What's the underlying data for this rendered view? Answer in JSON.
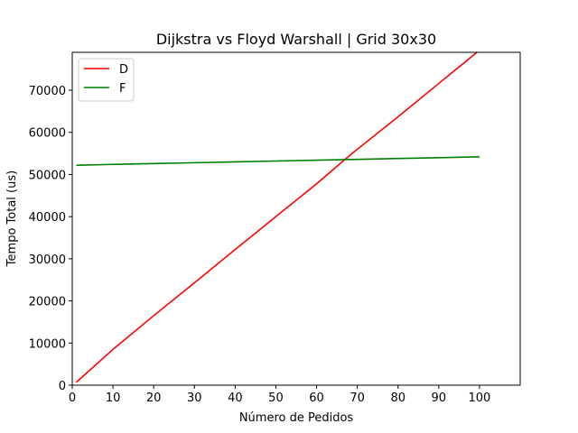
{
  "chart_data": {
    "type": "line",
    "title": "Dijkstra vs Floyd Warshall | Grid 30x30",
    "xlabel": "Número de Pedidos",
    "ylabel": "Tempo Total (us)",
    "xlim": [
      0,
      110
    ],
    "ylim": [
      0,
      79000
    ],
    "xticks": [
      0,
      10,
      20,
      30,
      40,
      50,
      60,
      70,
      80,
      90,
      100
    ],
    "yticks": [
      0,
      10000,
      20000,
      30000,
      40000,
      50000,
      60000,
      70000
    ],
    "grid": false,
    "legend_position": "top-left",
    "series": [
      {
        "name": "D",
        "color": "#ff0000",
        "x": [
          1,
          10,
          20,
          30,
          40,
          50,
          60,
          67,
          70,
          80,
          90,
          100
        ],
        "y": [
          700,
          8500,
          16500,
          24300,
          32200,
          40000,
          47800,
          53600,
          56000,
          63700,
          71600,
          79500
        ]
      },
      {
        "name": "F",
        "color": "#008000",
        "x": [
          1,
          10,
          20,
          30,
          40,
          50,
          60,
          70,
          80,
          90,
          100
        ],
        "y": [
          52200,
          52400,
          52600,
          52800,
          53000,
          53200,
          53400,
          53600,
          53800,
          54000,
          54200
        ]
      }
    ]
  }
}
